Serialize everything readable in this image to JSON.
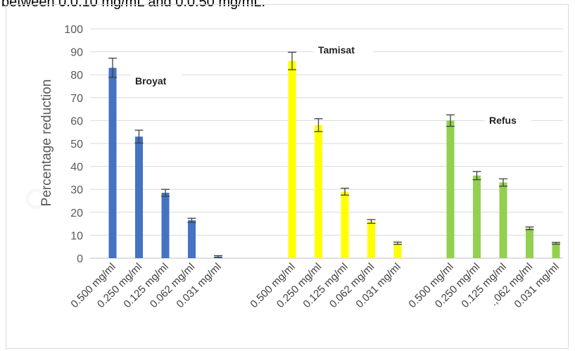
{
  "caption": "between 0.0.10 mg/mL and 0.0.50 mg/mL.",
  "chart_data": {
    "type": "bar",
    "title": "",
    "xlabel": "",
    "ylabel": "Percentage reduction",
    "ylim": [
      0,
      100
    ],
    "yticks": [
      0,
      10,
      20,
      30,
      40,
      50,
      60,
      70,
      80,
      90,
      100
    ],
    "grid": true,
    "legend": "none",
    "groups": [
      {
        "name": "Broyat",
        "color": "#4472c4",
        "categories": [
          "0.500 mg/ml",
          "0.250 mg/ml",
          "0.125 mg/ml",
          "0.062 mg/ml",
          "0.031 mg/ml"
        ],
        "values": [
          83,
          53,
          28.5,
          16.5,
          0.7
        ],
        "errors": [
          4.2,
          2.8,
          1.5,
          0.9,
          0.4
        ]
      },
      {
        "name": "Tamisat",
        "color": "#ffff00",
        "categories": [
          "0.500 mg/ml",
          "0.250 mg/ml",
          "0.125 mg/ml",
          "0.062 mg/ml",
          "0.031 mg/ml"
        ],
        "values": [
          86,
          58,
          29,
          16,
          6.5
        ],
        "errors": [
          3.8,
          2.8,
          1.5,
          0.8,
          0.5
        ]
      },
      {
        "name": "Refus",
        "color": "#92d050",
        "categories": [
          "0.500 mg/ml",
          "0.250 mg/ml",
          "0.125 mg/ml",
          ".,062 mg/ml",
          "0.031 mg/ml"
        ],
        "values": [
          60,
          36,
          33,
          13,
          6.5
        ],
        "errors": [
          2.5,
          1.8,
          1.6,
          0.6,
          0.4
        ]
      }
    ]
  }
}
